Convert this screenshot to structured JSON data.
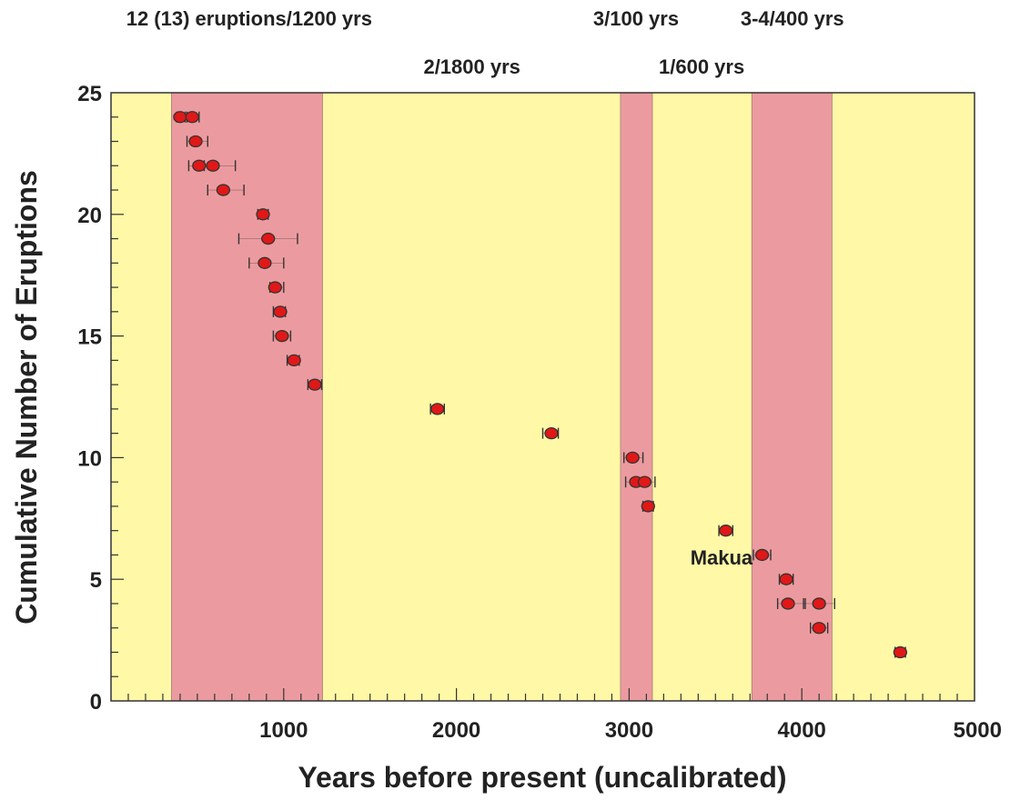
{
  "chart_data": {
    "type": "scatter",
    "xlabel": "Years before present (uncalibrated)",
    "ylabel": "Cumulative Number of Eruptions",
    "xlim": [
      0,
      5000
    ],
    "ylim": [
      0,
      25
    ],
    "x_ticks": [
      1000,
      2000,
      3000,
      4000,
      5000
    ],
    "y_ticks": [
      0,
      5,
      10,
      15,
      20,
      25
    ],
    "grid": false,
    "colors": {
      "background": "#fff8a6",
      "band": "#eb9b9f",
      "marker_fill": "#e01818",
      "marker_edge": "#333333",
      "axis": "#333333"
    },
    "bands": [
      {
        "x0": 350,
        "x1": 1225
      },
      {
        "x0": 2950,
        "x1": 3135
      },
      {
        "x0": 3710,
        "x1": 4175
      }
    ],
    "band_labels": [
      {
        "text": "12 (13) eruptions/1200 yrs",
        "row": "upper",
        "x": 800
      },
      {
        "text": "2/1800 yrs",
        "row": "lower",
        "x": 2090
      },
      {
        "text": "3/100 yrs",
        "row": "upper",
        "x": 3040
      },
      {
        "text": "1/600 yrs",
        "row": "lower",
        "x": 3420
      },
      {
        "text": "3-4/400 yrs",
        "row": "upper",
        "x": 3945
      }
    ],
    "points": [
      {
        "x": 400,
        "y": 24,
        "lo": 380,
        "hi": 430
      },
      {
        "x": 470,
        "y": 24,
        "lo": 440,
        "hi": 510
      },
      {
        "x": 490,
        "y": 23,
        "lo": 440,
        "hi": 560
      },
      {
        "x": 510,
        "y": 22,
        "lo": 450,
        "hi": 580
      },
      {
        "x": 590,
        "y": 22,
        "lo": 540,
        "hi": 720
      },
      {
        "x": 650,
        "y": 21,
        "lo": 560,
        "hi": 770
      },
      {
        "x": 880,
        "y": 20,
        "lo": 850,
        "hi": 910
      },
      {
        "x": 910,
        "y": 19,
        "lo": 740,
        "hi": 1080
      },
      {
        "x": 890,
        "y": 18,
        "lo": 800,
        "hi": 1000
      },
      {
        "x": 950,
        "y": 17,
        "lo": 920,
        "hi": 1000
      },
      {
        "x": 980,
        "y": 16,
        "lo": 940,
        "hi": 1010
      },
      {
        "x": 990,
        "y": 15,
        "lo": 940,
        "hi": 1040
      },
      {
        "x": 1060,
        "y": 14,
        "lo": 1020,
        "hi": 1090
      },
      {
        "x": 1180,
        "y": 13,
        "lo": 1140,
        "hi": 1220
      },
      {
        "x": 1890,
        "y": 12,
        "lo": 1850,
        "hi": 1930
      },
      {
        "x": 2550,
        "y": 11,
        "lo": 2500,
        "hi": 2590
      },
      {
        "x": 3020,
        "y": 10,
        "lo": 2970,
        "hi": 3080
      },
      {
        "x": 3040,
        "y": 9,
        "lo": 2980,
        "hi": 3100
      },
      {
        "x": 3090,
        "y": 9,
        "lo": 3030,
        "hi": 3150
      },
      {
        "x": 3110,
        "y": 8,
        "lo": 3080,
        "hi": 3140
      },
      {
        "x": 3560,
        "y": 7,
        "lo": 3520,
        "hi": 3600
      },
      {
        "x": 3770,
        "y": 6,
        "lo": 3720,
        "hi": 3820
      },
      {
        "x": 3910,
        "y": 5,
        "lo": 3870,
        "hi": 3950
      },
      {
        "x": 3920,
        "y": 4,
        "lo": 3860,
        "hi": 4020
      },
      {
        "x": 4100,
        "y": 4,
        "lo": 4010,
        "hi": 4190
      },
      {
        "x": 4100,
        "y": 3,
        "lo": 4050,
        "hi": 4150
      },
      {
        "x": 4570,
        "y": 2,
        "lo": 4540,
        "hi": 4600
      }
    ],
    "annotations": [
      {
        "text": "Makua",
        "x": 3535,
        "y": 5.9
      }
    ]
  }
}
